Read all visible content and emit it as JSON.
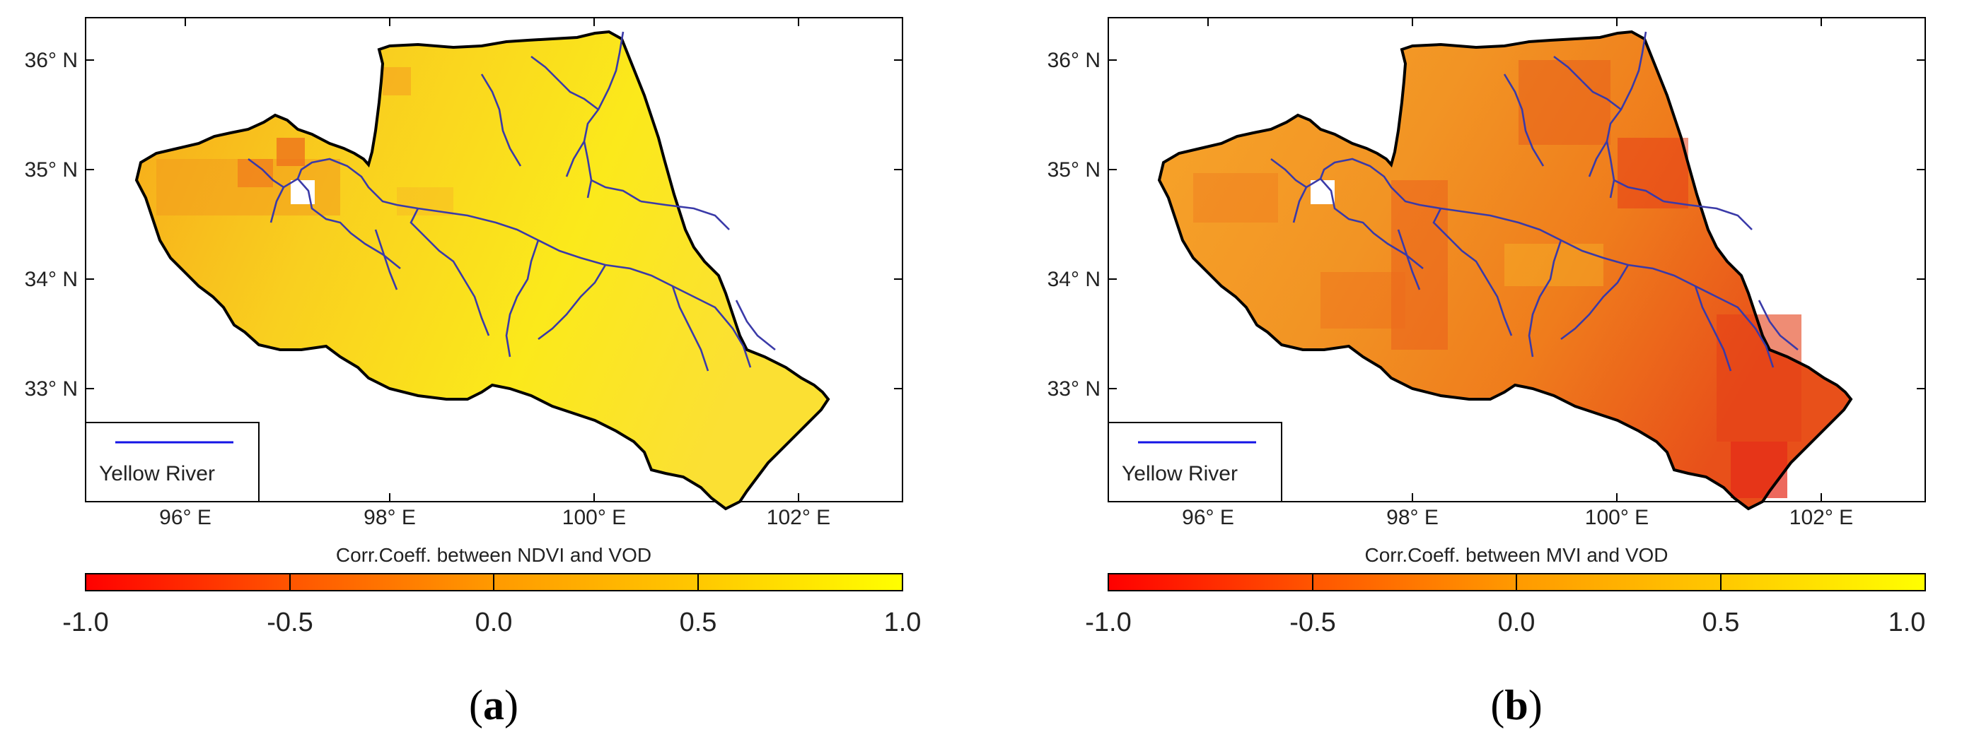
{
  "panels": [
    {
      "id": "a",
      "label": "a",
      "label_open": "(",
      "label_close": ")",
      "colorbar_title": "Corr.Coeff. between NDVI and VOD",
      "legend_label": "Yellow River",
      "lat_ticks": [
        "36° N",
        "35° N",
        "34° N",
        "33° N"
      ],
      "lon_ticks": [
        "96° E",
        "98° E",
        "100° E",
        "102° E"
      ],
      "colorbar_ticks": [
        "-1.0",
        "-0.5",
        "0.0",
        "0.5",
        "1.0"
      ],
      "fill_base": "#f8d51a"
    },
    {
      "id": "b",
      "label": "b",
      "label_open": "(",
      "label_close": ")",
      "colorbar_title": "Corr.Coeff. between MVI and VOD",
      "legend_label": "Yellow River",
      "lat_ticks": [
        "36° N",
        "35° N",
        "34° N",
        "33° N"
      ],
      "lon_ticks": [
        "96° E",
        "98° E",
        "100° E",
        "102° E"
      ],
      "colorbar_ticks": [
        "-1.0",
        "-0.5",
        "0.0",
        "0.5",
        "1.0"
      ],
      "fill_base": "#f39a1e"
    }
  ],
  "colors": {
    "river": "#3a3aa8",
    "legend_line": "#1414e6",
    "border": "#000000",
    "colormap": [
      "#ff0000",
      "#ff6a00",
      "#ffa100",
      "#ffc800",
      "#ffff00"
    ]
  }
}
